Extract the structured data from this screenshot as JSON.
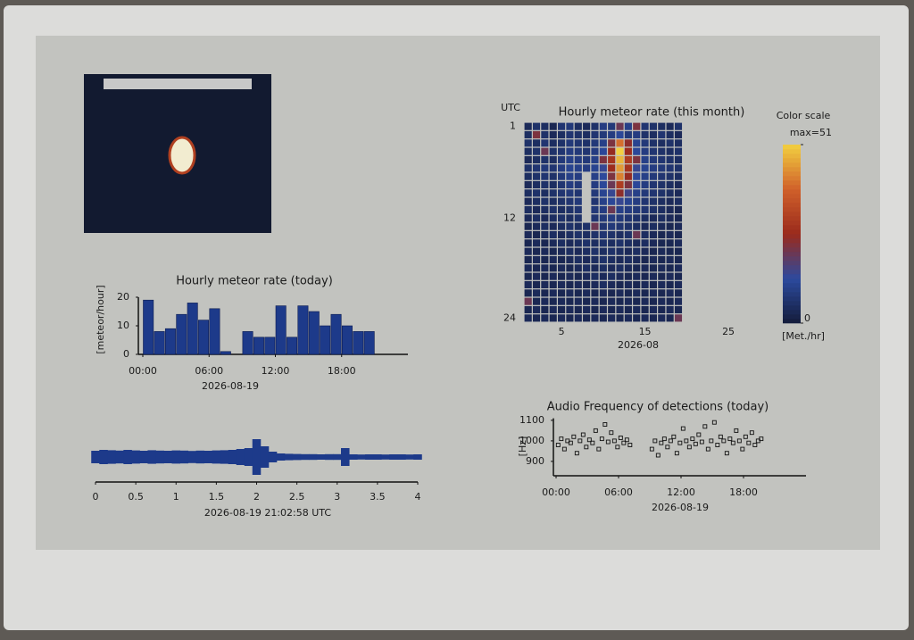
{
  "chart_data": [
    {
      "type": "bar",
      "title": "Hourly meteor rate (today)",
      "y_label": "[meteor/hour]",
      "x_label": "2026-08-19",
      "color": "#1d3a8a",
      "x": [
        0,
        1,
        2,
        3,
        4,
        5,
        6,
        7,
        8,
        9,
        10,
        11,
        12,
        13,
        14,
        15,
        16,
        17,
        18,
        19,
        20
      ],
      "values": [
        19,
        8,
        9,
        14,
        18,
        12,
        16,
        1,
        0,
        8,
        6,
        6,
        17,
        6,
        17,
        15,
        10,
        14,
        10,
        8,
        8
      ],
      "xlim": [
        0,
        24
      ],
      "ylim": [
        0,
        20
      ],
      "yticks": [
        0,
        10,
        20
      ],
      "xticks": [
        {
          "value": 0,
          "label": "00:00"
        },
        {
          "value": 6,
          "label": "06:00"
        },
        {
          "value": 12,
          "label": "12:00"
        },
        {
          "value": 18,
          "label": "18:00"
        }
      ]
    },
    {
      "type": "area",
      "x_label": "2026-08-19 21:02:58 UTC",
      "color": "#1d3a8a",
      "x": [
        0,
        0.1,
        0.2,
        0.3,
        0.4,
        0.5,
        0.6,
        0.7,
        0.8,
        0.9,
        1,
        1.1,
        1.2,
        1.3,
        1.4,
        1.5,
        1.6,
        1.7,
        1.8,
        1.9,
        2,
        2.1,
        2.2,
        2.3,
        2.4,
        2.5,
        2.6,
        2.7,
        2.8,
        2.9,
        3,
        3.1,
        3.2,
        3.3,
        3.4,
        3.5,
        3.6,
        3.7,
        3.8,
        3.9,
        4
      ],
      "values": [
        0.35,
        0.4,
        0.38,
        0.36,
        0.4,
        0.37,
        0.35,
        0.38,
        0.36,
        0.35,
        0.37,
        0.36,
        0.34,
        0.36,
        0.35,
        0.37,
        0.38,
        0.4,
        0.45,
        0.5,
        1,
        0.6,
        0.3,
        0.2,
        0.18,
        0.17,
        0.16,
        0.16,
        0.15,
        0.16,
        0.16,
        0.5,
        0.15,
        0.14,
        0.15,
        0.15,
        0.14,
        0.15,
        0.15,
        0.14,
        0.15
      ],
      "xlim": [
        0,
        4
      ],
      "ylim": [
        -1,
        1
      ],
      "xticks": [
        0,
        0.5,
        1,
        1.5,
        2,
        2.5,
        3,
        3.5,
        4
      ]
    },
    {
      "type": "heatmap",
      "title": "Hourly meteor rate (this month)",
      "y_label": "UTC",
      "x_label": "2026-08",
      "colorbar_title": "Color scale",
      "colorbar_label": "[Met./hr]",
      "colors": [
        "#141c3a",
        "#2c4a9e",
        "#9a2a1c",
        "#d0602a",
        "#f2d040"
      ],
      "zlim": [
        0,
        51
      ],
      "zticks": [
        0,
        {
          "value": 51,
          "label": "max=51"
        }
      ],
      "x": [
        1,
        2,
        3,
        4,
        5,
        6,
        7,
        8,
        9,
        10,
        11,
        12,
        13,
        14,
        15,
        16,
        17,
        18,
        19
      ],
      "y": [
        1,
        2,
        3,
        4,
        5,
        6,
        7,
        8,
        9,
        10,
        11,
        12,
        13,
        14,
        15,
        16,
        17,
        18,
        19,
        20,
        21,
        22,
        23,
        24
      ],
      "xlim": [
        0.5,
        31.5
      ],
      "ylim": [
        0.5,
        24.5
      ],
      "xticks": [
        5,
        15,
        25
      ],
      "yticks": [
        1,
        12,
        24
      ],
      "values": [
        [
          4,
          6,
          5,
          3,
          7,
          8,
          5,
          4,
          6,
          9,
          8,
          20,
          10,
          22,
          7,
          6,
          5,
          4,
          6
        ],
        [
          5,
          22,
          6,
          4,
          5,
          7,
          6,
          5,
          7,
          8,
          9,
          12,
          8,
          9,
          6,
          5,
          7,
          5,
          4
        ],
        [
          6,
          5,
          7,
          5,
          6,
          8,
          7,
          6,
          8,
          10,
          22,
          40,
          24,
          11,
          8,
          6,
          5,
          6,
          5
        ],
        [
          5,
          6,
          20,
          6,
          7,
          9,
          8,
          7,
          9,
          12,
          25,
          51,
          26,
          12,
          9,
          7,
          6,
          5,
          6
        ],
        [
          4,
          5,
          6,
          5,
          8,
          10,
          9,
          8,
          10,
          22,
          28,
          48,
          30,
          22,
          10,
          8,
          7,
          6,
          5
        ],
        [
          6,
          7,
          8,
          7,
          9,
          11,
          10,
          9,
          11,
          14,
          26,
          45,
          28,
          14,
          11,
          9,
          8,
          7,
          6
        ],
        [
          5,
          6,
          7,
          6,
          8,
          10,
          9,
          null,
          10,
          13,
          22,
          42,
          25,
          13,
          10,
          8,
          7,
          6,
          5
        ],
        [
          4,
          5,
          6,
          5,
          7,
          9,
          8,
          null,
          9,
          12,
          20,
          30,
          22,
          12,
          9,
          7,
          6,
          5,
          4
        ],
        [
          5,
          6,
          5,
          6,
          7,
          8,
          7,
          null,
          8,
          11,
          14,
          24,
          15,
          10,
          8,
          7,
          6,
          5,
          4
        ],
        [
          4,
          5,
          6,
          5,
          6,
          7,
          8,
          null,
          7,
          10,
          12,
          14,
          11,
          9,
          7,
          6,
          5,
          4,
          5
        ],
        [
          5,
          4,
          5,
          6,
          5,
          6,
          7,
          null,
          8,
          9,
          20,
          10,
          9,
          8,
          7,
          6,
          5,
          4,
          3
        ],
        [
          4,
          5,
          4,
          5,
          6,
          5,
          6,
          null,
          7,
          8,
          9,
          8,
          7,
          6,
          5,
          4,
          5,
          4,
          3
        ],
        [
          3,
          4,
          5,
          4,
          5,
          6,
          5,
          6,
          20,
          7,
          8,
          7,
          6,
          5,
          4,
          5,
          4,
          3,
          4
        ],
        [
          4,
          3,
          4,
          5,
          4,
          5,
          6,
          5,
          6,
          7,
          6,
          5,
          6,
          20,
          5,
          4,
          3,
          4,
          3
        ],
        [
          3,
          4,
          3,
          4,
          5,
          4,
          5,
          6,
          5,
          6,
          5,
          6,
          5,
          4,
          5,
          4,
          3,
          3,
          4
        ],
        [
          4,
          3,
          4,
          3,
          4,
          5,
          4,
          5,
          6,
          5,
          6,
          5,
          4,
          5,
          4,
          3,
          4,
          3,
          3
        ],
        [
          3,
          4,
          3,
          4,
          3,
          4,
          5,
          4,
          5,
          6,
          5,
          4,
          5,
          4,
          3,
          4,
          3,
          4,
          3
        ],
        [
          4,
          3,
          4,
          3,
          4,
          3,
          4,
          5,
          4,
          5,
          4,
          5,
          4,
          3,
          4,
          3,
          4,
          3,
          4
        ],
        [
          3,
          4,
          3,
          4,
          3,
          4,
          3,
          4,
          5,
          4,
          5,
          4,
          3,
          4,
          3,
          4,
          3,
          4,
          3
        ],
        [
          4,
          3,
          4,
          3,
          4,
          3,
          4,
          3,
          4,
          5,
          4,
          3,
          4,
          3,
          4,
          3,
          4,
          3,
          4
        ],
        [
          3,
          4,
          3,
          4,
          3,
          4,
          3,
          4,
          3,
          4,
          3,
          4,
          3,
          4,
          3,
          4,
          3,
          4,
          3
        ],
        [
          20,
          3,
          4,
          3,
          4,
          3,
          4,
          3,
          4,
          3,
          4,
          3,
          4,
          3,
          4,
          3,
          4,
          3,
          4
        ],
        [
          3,
          4,
          3,
          4,
          3,
          4,
          3,
          4,
          3,
          4,
          3,
          4,
          3,
          4,
          3,
          4,
          3,
          4,
          3
        ],
        [
          4,
          3,
          4,
          3,
          4,
          3,
          4,
          3,
          4,
          3,
          4,
          3,
          4,
          3,
          4,
          3,
          4,
          3,
          20
        ]
      ]
    },
    {
      "type": "scatter",
      "title": "Audio Frequency of detections (today)",
      "y_label": "[Hz]",
      "x_label": "2026-08-19",
      "color": "#111111",
      "x": [
        0.2,
        0.5,
        0.8,
        1.1,
        1.4,
        1.7,
        2.0,
        2.3,
        2.6,
        2.9,
        3.2,
        3.5,
        3.8,
        4.1,
        4.4,
        4.7,
        5.0,
        5.3,
        5.6,
        5.9,
        6.2,
        6.5,
        6.8,
        7.1,
        9.2,
        9.5,
        9.8,
        10.1,
        10.4,
        10.7,
        11.0,
        11.3,
        11.6,
        11.9,
        12.2,
        12.5,
        12.8,
        13.1,
        13.4,
        13.7,
        14.0,
        14.3,
        14.6,
        14.9,
        15.2,
        15.5,
        15.8,
        16.1,
        16.4,
        16.7,
        17.0,
        17.3,
        17.6,
        17.9,
        18.2,
        18.5,
        18.8,
        19.1,
        19.4,
        19.7
      ],
      "values": [
        980,
        1010,
        960,
        1000,
        990,
        1020,
        940,
        1000,
        1030,
        970,
        1005,
        990,
        1050,
        960,
        1010,
        1080,
        995,
        1040,
        1000,
        970,
        1015,
        990,
        1005,
        980,
        960,
        1000,
        930,
        990,
        1010,
        970,
        1000,
        1020,
        940,
        990,
        1060,
        1000,
        970,
        1010,
        985,
        1030,
        995,
        1070,
        960,
        1000,
        1090,
        980,
        1020,
        1000,
        940,
        1010,
        990,
        1050,
        1000,
        960,
        1020,
        990,
        1040,
        980,
        1000,
        1010
      ],
      "xlim": [
        0,
        24
      ],
      "ylim": [
        830,
        1110
      ],
      "yticks": [
        900,
        1000,
        1100
      ],
      "xticks": [
        {
          "value": 0,
          "label": "00:00"
        },
        {
          "value": 6,
          "label": "06:00"
        },
        {
          "value": 12,
          "label": "12:00"
        },
        {
          "value": 18,
          "label": "18:00"
        }
      ]
    }
  ]
}
